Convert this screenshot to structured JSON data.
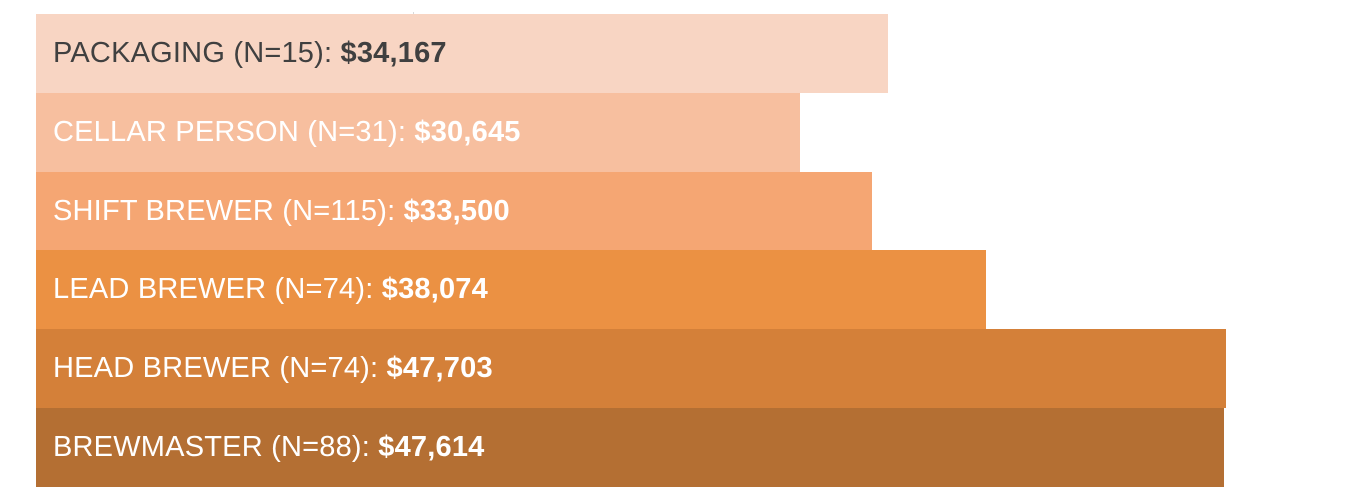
{
  "chart_data": {
    "type": "bar",
    "orientation": "horizontal",
    "title": "",
    "xlabel": "",
    "ylabel": "",
    "xlim": [
      0,
      50000
    ],
    "grid": false,
    "legend": "none",
    "categories": [
      "PACKAGING (N=15)",
      "CELLAR PERSON (N=31)",
      "SHIFT BREWER (N=115)",
      "LEAD BREWER (N=74)",
      "HEAD BREWER (N=74)",
      "BREWMASTER (N=88)"
    ],
    "values": [
      34167,
      30645,
      33500,
      38074,
      47703,
      47614
    ],
    "value_labels": [
      "$34,167",
      "$30,645",
      "$33,500",
      "$38,074",
      "$47,703",
      "$47,614"
    ],
    "colors": [
      "#f8d5c3",
      "#f7bf9f",
      "#f5a673",
      "#eb9143",
      "#d48039",
      "#b46f33"
    ],
    "label_colors": [
      "#404040",
      "#ffffff",
      "#ffffff",
      "#ffffff",
      "#ffffff",
      "#ffffff"
    ]
  }
}
